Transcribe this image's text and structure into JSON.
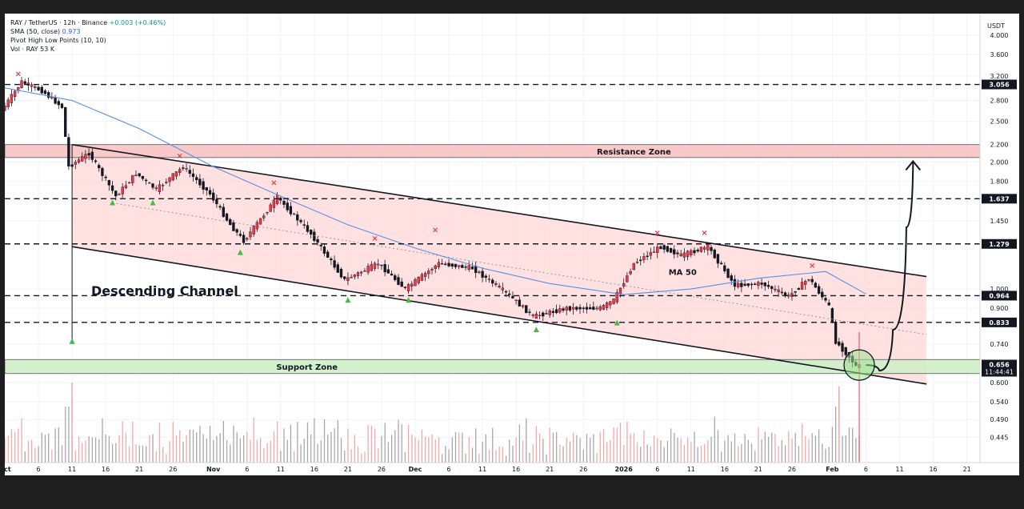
{
  "header": {
    "symbol_line": "RAY / TetherUS · 12h · Binance",
    "change": "+0.003 (+0.46%)",
    "sma_label": "SMA (50, close)",
    "sma_value": "0.973",
    "pivot_label": "Pivot High Low Points (10, 10)",
    "vol_label": "Vol · RAY",
    "vol_value": "53 K"
  },
  "chart_data": {
    "type": "candlestick",
    "symbol": "RAY / TetherUS",
    "interval": "12h",
    "exchange": "Binance",
    "currency": "USDT",
    "y_scale": "log",
    "ylim": [
      0.41,
      4.5
    ],
    "y_ticks": [
      {
        "v": 4.0,
        "label": "4.000"
      },
      {
        "v": 3.6,
        "label": "3.600"
      },
      {
        "v": 3.2,
        "label": "3.200"
      },
      {
        "v": 2.8,
        "label": "2.800"
      },
      {
        "v": 2.5,
        "label": "2.500"
      },
      {
        "v": 2.2,
        "label": "2.200"
      },
      {
        "v": 2.0,
        "label": "2.000"
      },
      {
        "v": 1.8,
        "label": "1.800"
      },
      {
        "v": 1.45,
        "label": "1.450"
      },
      {
        "v": 1.0,
        "label": "1.000"
      },
      {
        "v": 0.9,
        "label": "0.900"
      },
      {
        "v": 0.74,
        "label": "0.740"
      },
      {
        "v": 0.6,
        "label": "0.600"
      },
      {
        "v": 0.54,
        "label": "0.540"
      },
      {
        "v": 0.49,
        "label": "0.490"
      },
      {
        "v": 0.445,
        "label": "0.445"
      }
    ],
    "x_axis": {
      "start_date": "2025-10-01",
      "end_date": "2026-02-22",
      "ticks": [
        {
          "date": "2025-10-01",
          "label": "Oct"
        },
        {
          "date": "2025-10-06",
          "label": "6"
        },
        {
          "date": "2025-10-11",
          "label": "11"
        },
        {
          "date": "2025-10-16",
          "label": "16"
        },
        {
          "date": "2025-10-21",
          "label": "21"
        },
        {
          "date": "2025-10-26",
          "label": "26"
        },
        {
          "date": "2025-11-01",
          "label": "Nov"
        },
        {
          "date": "2025-11-06",
          "label": "6"
        },
        {
          "date": "2025-11-11",
          "label": "11"
        },
        {
          "date": "2025-11-16",
          "label": "16"
        },
        {
          "date": "2025-11-21",
          "label": "21"
        },
        {
          "date": "2025-11-26",
          "label": "26"
        },
        {
          "date": "2025-12-01",
          "label": "Dec"
        },
        {
          "date": "2025-12-06",
          "label": "6"
        },
        {
          "date": "2025-12-11",
          "label": "11"
        },
        {
          "date": "2025-12-16",
          "label": "16"
        },
        {
          "date": "2025-12-21",
          "label": "21"
        },
        {
          "date": "2025-12-26",
          "label": "26"
        },
        {
          "date": "2026-01-01",
          "label": "2026"
        },
        {
          "date": "2026-01-06",
          "label": "6"
        },
        {
          "date": "2026-01-11",
          "label": "11"
        },
        {
          "date": "2026-01-16",
          "label": "16"
        },
        {
          "date": "2026-01-21",
          "label": "21"
        },
        {
          "date": "2026-01-26",
          "label": "26"
        },
        {
          "date": "2026-02-01",
          "label": "Feb"
        },
        {
          "date": "2026-02-06",
          "label": "6"
        },
        {
          "date": "2026-02-11",
          "label": "11"
        },
        {
          "date": "2026-02-16",
          "label": "16"
        },
        {
          "date": "2026-02-21",
          "label": "21"
        }
      ]
    },
    "price_keypoints": [
      {
        "date": "2025-10-01",
        "price": 2.65
      },
      {
        "date": "2025-10-04",
        "price": 3.1
      },
      {
        "date": "2025-10-07",
        "price": 2.95
      },
      {
        "date": "2025-10-10",
        "price": 2.7
      },
      {
        "date": "2025-10-11",
        "price": 1.95
      },
      {
        "date": "2025-10-14",
        "price": 2.1
      },
      {
        "date": "2025-10-18",
        "price": 1.66
      },
      {
        "date": "2025-10-21",
        "price": 1.88
      },
      {
        "date": "2025-10-24",
        "price": 1.72
      },
      {
        "date": "2025-10-28",
        "price": 1.95
      },
      {
        "date": "2025-11-01",
        "price": 1.68
      },
      {
        "date": "2025-11-04",
        "price": 1.42
      },
      {
        "date": "2025-11-06",
        "price": 1.3
      },
      {
        "date": "2025-11-11",
        "price": 1.65
      },
      {
        "date": "2025-11-16",
        "price": 1.35
      },
      {
        "date": "2025-11-21",
        "price": 1.05
      },
      {
        "date": "2025-11-26",
        "price": 1.15
      },
      {
        "date": "2025-11-30",
        "price": 1.0
      },
      {
        "date": "2025-12-05",
        "price": 1.15
      },
      {
        "date": "2025-12-10",
        "price": 1.12
      },
      {
        "date": "2025-12-15",
        "price": 0.98
      },
      {
        "date": "2025-12-19",
        "price": 0.86
      },
      {
        "date": "2025-12-24",
        "price": 0.9
      },
      {
        "date": "2025-12-29",
        "price": 0.9
      },
      {
        "date": "2025-12-31",
        "price": 0.94
      },
      {
        "date": "2026-01-03",
        "price": 1.15
      },
      {
        "date": "2026-01-07",
        "price": 1.26
      },
      {
        "date": "2026-01-10",
        "price": 1.2
      },
      {
        "date": "2026-01-14",
        "price": 1.26
      },
      {
        "date": "2026-01-18",
        "price": 1.02
      },
      {
        "date": "2026-01-22",
        "price": 1.03
      },
      {
        "date": "2026-01-26",
        "price": 0.96
      },
      {
        "date": "2026-01-29",
        "price": 1.06
      },
      {
        "date": "2026-02-01",
        "price": 0.91
      },
      {
        "date": "2026-02-02",
        "price": 0.75
      },
      {
        "date": "2026-02-04",
        "price": 0.69
      },
      {
        "date": "2026-02-05",
        "price": 0.656
      }
    ],
    "sma50_keypoints": [
      {
        "date": "2025-10-01",
        "price": 3.0
      },
      {
        "date": "2025-10-11",
        "price": 2.8
      },
      {
        "date": "2025-10-21",
        "price": 2.4
      },
      {
        "date": "2025-11-01",
        "price": 1.95
      },
      {
        "date": "2025-11-11",
        "price": 1.66
      },
      {
        "date": "2025-11-21",
        "price": 1.42
      },
      {
        "date": "2025-12-01",
        "price": 1.25
      },
      {
        "date": "2025-12-11",
        "price": 1.12
      },
      {
        "date": "2025-12-21",
        "price": 1.03
      },
      {
        "date": "2026-01-01",
        "price": 0.97
      },
      {
        "date": "2026-01-11",
        "price": 1.0
      },
      {
        "date": "2026-01-21",
        "price": 1.06
      },
      {
        "date": "2026-01-31",
        "price": 1.1
      },
      {
        "date": "2026-02-06",
        "price": 0.973
      }
    ],
    "horizontal_levels": [
      {
        "price": 3.056,
        "label": "3.056"
      },
      {
        "price": 1.637,
        "label": "1.637"
      },
      {
        "price": 1.279,
        "label": "1.279"
      },
      {
        "price": 0.964,
        "label": "0.964"
      },
      {
        "price": 0.833,
        "label": "0.833"
      }
    ],
    "current_price": {
      "label": "0.656",
      "countdown": "11:44:41",
      "price": 0.656
    },
    "zones": {
      "resistance": {
        "label": "Resistance Zone",
        "low": 2.05,
        "high": 2.2
      },
      "support": {
        "label": "Support Zone",
        "low": 0.63,
        "high": 0.68
      }
    },
    "channel": {
      "label": "Descending Channel",
      "upper": [
        {
          "date": "2025-10-11",
          "price": 2.2
        },
        {
          "date": "2026-02-15",
          "price": 1.07
        }
      ],
      "lower": [
        {
          "date": "2025-10-11",
          "price": 1.26
        },
        {
          "date": "2026-02-15",
          "price": 0.595
        }
      ]
    },
    "ma_label": "MA 50",
    "pivot_highs": [
      {
        "date": "2025-10-03",
        "price": 3.19
      },
      {
        "date": "2025-10-27",
        "price": 2.04
      },
      {
        "date": "2025-11-10",
        "price": 1.76
      },
      {
        "date": "2025-11-25",
        "price": 1.3
      },
      {
        "date": "2025-12-04",
        "price": 1.36
      },
      {
        "date": "2026-01-06",
        "price": 1.34
      },
      {
        "date": "2026-01-13",
        "price": 1.34
      },
      {
        "date": "2026-01-29",
        "price": 1.12
      }
    ],
    "pivot_lows": [
      {
        "date": "2025-10-11",
        "price": 0.75
      },
      {
        "date": "2025-10-17",
        "price": 1.6
      },
      {
        "date": "2025-10-23",
        "price": 1.6
      },
      {
        "date": "2025-11-05",
        "price": 1.22
      },
      {
        "date": "2025-11-21",
        "price": 0.94
      },
      {
        "date": "2025-11-30",
        "price": 0.94
      },
      {
        "date": "2025-12-19",
        "price": 0.8
      },
      {
        "date": "2025-12-31",
        "price": 0.83
      }
    ],
    "projection": [
      {
        "date": "2026-02-06",
        "price": 0.66
      },
      {
        "date": "2026-02-08",
        "price": 0.64
      },
      {
        "date": "2026-02-10",
        "price": 0.8
      },
      {
        "date": "2026-02-12",
        "price": 1.4
      },
      {
        "date": "2026-02-13",
        "price": 2.0
      }
    ]
  },
  "colors": {
    "up": "#089981",
    "down": "#131722",
    "candle_up_fill": "#f23645",
    "sma": "#5b8de8",
    "channel_fill": "#ffd7d7",
    "resistance_fill": "#f9c9c9",
    "support_fill": "#cdeec6",
    "pivot_high": "#f23645",
    "pivot_low": "#3fbf3f"
  }
}
